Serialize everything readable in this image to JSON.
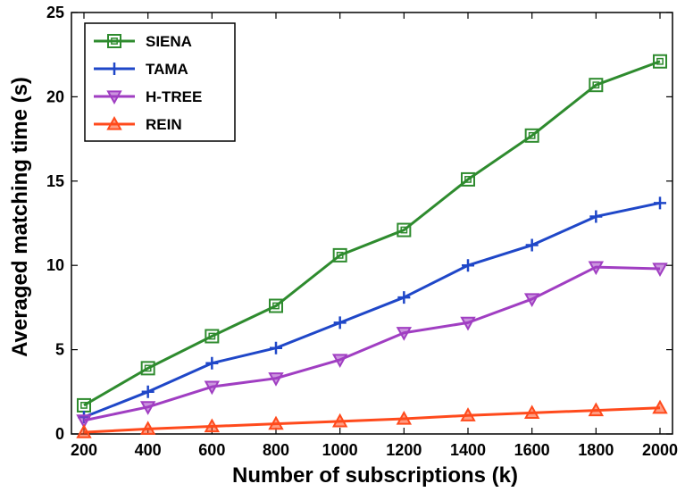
{
  "chart_data": {
    "type": "line",
    "xlabel": "Number of subscriptions (k)",
    "ylabel": "Averaged matching time (s)",
    "x": [
      200,
      400,
      600,
      800,
      1000,
      1200,
      1400,
      1600,
      1800,
      2000
    ],
    "xticks": [
      "200",
      "400",
      "600",
      "800",
      "1000",
      "1200",
      "1400",
      "1600",
      "1800",
      "2000"
    ],
    "yticks": [
      "0",
      "5",
      "10",
      "15",
      "20",
      "25"
    ],
    "xlim": [
      200,
      2000
    ],
    "ylim": [
      0,
      25
    ],
    "grid": false,
    "legend_position": "top-left",
    "series": [
      {
        "name": "SIENA",
        "color": "#2e8b2e",
        "marker": "square",
        "values": [
          1.7,
          3.9,
          5.8,
          7.6,
          10.6,
          12.1,
          15.1,
          17.7,
          20.7,
          22.1
        ]
      },
      {
        "name": "TAMA",
        "color": "#1f47c8",
        "marker": "plus",
        "values": [
          1.0,
          2.5,
          4.2,
          5.1,
          6.6,
          8.1,
          10.0,
          11.2,
          12.9,
          13.7
        ]
      },
      {
        "name": "H-TREE",
        "color": "#a03ec2",
        "marker": "triangle-down",
        "values": [
          0.8,
          1.6,
          2.8,
          3.3,
          4.4,
          6.0,
          6.6,
          8.0,
          9.9,
          9.8
        ]
      },
      {
        "name": "REIN",
        "color": "#ff4a1c",
        "marker": "triangle-up",
        "values": [
          0.1,
          0.3,
          0.45,
          0.6,
          0.75,
          0.9,
          1.1,
          1.25,
          1.4,
          1.55
        ]
      }
    ]
  }
}
